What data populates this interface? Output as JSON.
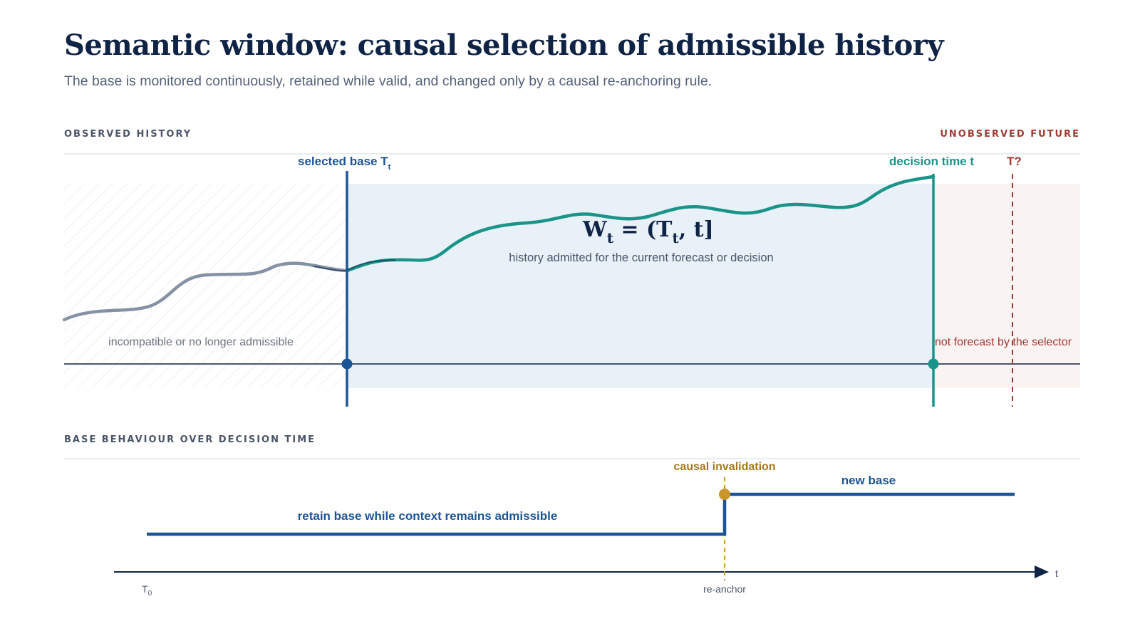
{
  "header": {
    "title": "Semantic window: causal selection of admissible history",
    "subtitle": "The base is monitored continuously, retained while valid, and changed only by a causal re-anchoring rule."
  },
  "top_panel": {
    "left_heading": "OBSERVED HISTORY",
    "right_heading": "UNOBSERVED FUTURE",
    "base_label": "selected base T",
    "base_sub": "t",
    "decision_label": "decision time t",
    "future_label": "T?",
    "window_formula": {
      "w": "W",
      "w_sub": "t",
      "middle": " = (T",
      "t_sub": "t",
      "end": ", t]"
    },
    "window_caption": "history admitted for the current forecast or decision",
    "excluded_caption": "incompatible or no longer admissible",
    "future_caption": "not forecast by the selector"
  },
  "bottom_panel": {
    "heading": "BASE BEHAVIOUR OVER DECISION TIME",
    "event_label": "causal invalidation",
    "new_base_label": "new base",
    "retain_label": "retain base while context remains admissible",
    "t0_label": "T",
    "t0_sub": "0",
    "reanchor_label": "re-anchor",
    "axis_label": "t"
  },
  "colors": {
    "navy": "#0f2345",
    "blue": "#1c5596",
    "teal": "#1a9489",
    "red": "#a13a35",
    "gold": "#c9962a",
    "window_fill": "#e8f0f8",
    "future_fill": "#f9f3f2",
    "history_gray": "#8592a6"
  }
}
